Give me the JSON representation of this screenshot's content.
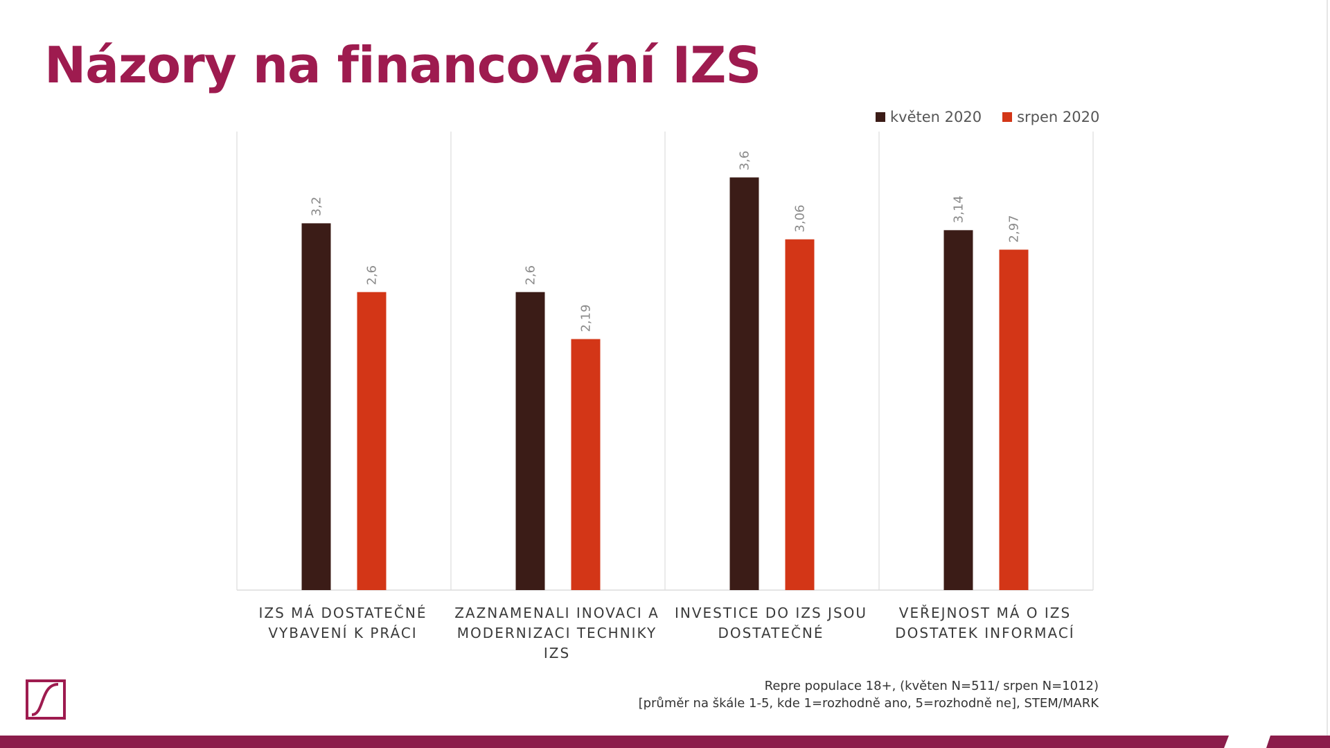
{
  "header": {
    "title": "Názory na financování IZS"
  },
  "chart_data": {
    "type": "bar",
    "categories": [
      "IZS MÁ DOSTATEČNÉ VYBAVENÍ K PRÁCI",
      "ZAZNAMENALI INOVACI A MODERNIZACI TECHNIKY IZS",
      "INVESTICE DO IZS JSOU DOSTATEČNÉ",
      "VEŘEJNOST MÁ O IZS DOSTATEK INFORMACÍ"
    ],
    "series": [
      {
        "name": "květen 2020",
        "values": [
          3.2,
          2.6,
          3.6,
          3.14
        ],
        "labels": [
          "3,2",
          "2,6",
          "3,6",
          "3,14"
        ],
        "color": "#3b1c17"
      },
      {
        "name": "srpen 2020",
        "values": [
          2.6,
          2.19,
          3.06,
          2.97
        ],
        "labels": [
          "2,6",
          "2,19",
          "3,06",
          "2,97"
        ],
        "color": "#d33617"
      }
    ],
    "ylim": [
      0,
      4
    ],
    "grid": "vertical-separators",
    "legend": "top-right"
  },
  "footnote": {
    "line1": "Repre populace 18+, (květen N=511/ srpen N=1012)",
    "line2": "[průměr na škále 1-5, kde 1=rozhodně ano, 5=rozhodně ne], STEM/MARK"
  },
  "logo": {
    "icon": "stem-mark-logo-icon"
  },
  "colors": {
    "accent": "#9e1b4f",
    "series1": "#3b1c17",
    "series2": "#d33617"
  }
}
